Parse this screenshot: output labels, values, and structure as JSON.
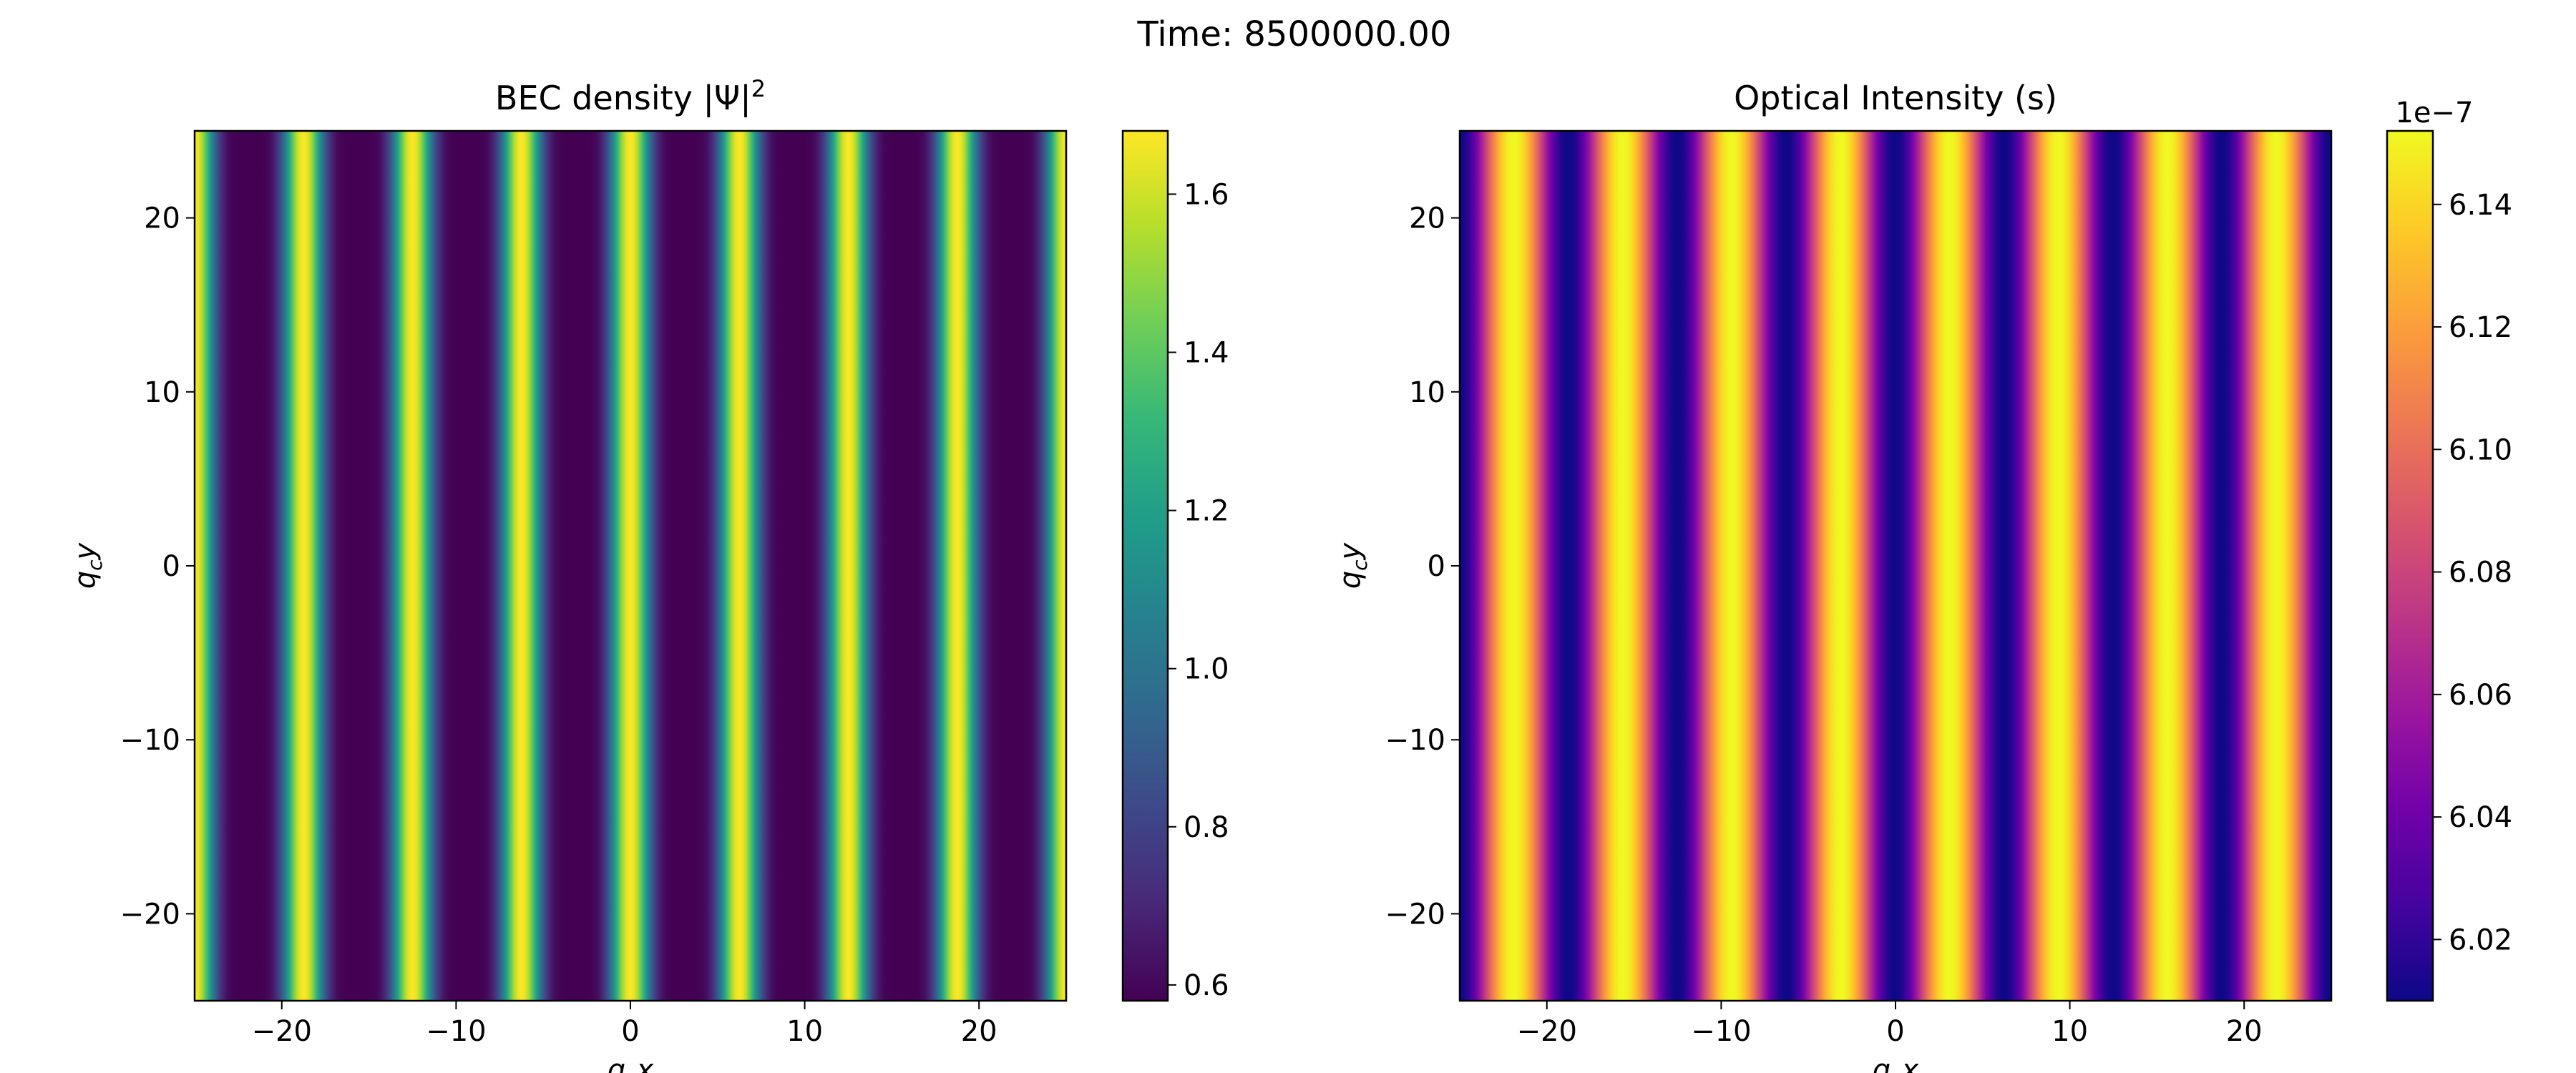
{
  "figure": {
    "suptitle": "Time: 8500000.00"
  },
  "chart_data": [
    {
      "type": "heatmap",
      "title": "BEC density |Ψ|",
      "title_superscript": "2",
      "xlabel": "q",
      "xlabel_sub": "c",
      "xlabel_var": "x",
      "ylabel": "q",
      "ylabel_sub": "c",
      "ylabel_var": "y",
      "xlim": [
        -25,
        25
      ],
      "ylim": [
        -25,
        25
      ],
      "xticks": [
        -20,
        -10,
        0,
        10,
        20
      ],
      "yticks": [
        -20,
        -10,
        0,
        10,
        20
      ],
      "colormap": "viridis",
      "stripe_count": 8,
      "stripe_centers_x": [
        -25,
        -18.8,
        -12.5,
        -6.2,
        0,
        6.2,
        12.5,
        18.8,
        25
      ],
      "field": "density varies only along x; |Ψ|^2 ≈ 0.58 between stripes, peaks ≈ 1.68 at stripe centers",
      "value_range": [
        0.58,
        1.68
      ],
      "colorbar": {
        "ticks": [
          "0.6",
          "0.8",
          "1.0",
          "1.2",
          "1.4",
          "1.6"
        ],
        "tick_values": [
          0.6,
          0.8,
          1.0,
          1.2,
          1.4,
          1.6
        ],
        "offset_text": ""
      },
      "grid": false
    },
    {
      "type": "heatmap",
      "title": "Optical Intensity (s)",
      "xlabel": "q",
      "xlabel_sub": "c",
      "xlabel_var": "x",
      "ylabel": "q",
      "ylabel_sub": "c",
      "ylabel_var": "y",
      "xlim": [
        -25,
        25
      ],
      "ylim": [
        -25,
        25
      ],
      "xticks": [
        -20,
        -10,
        0,
        10,
        20
      ],
      "yticks": [
        -20,
        -10,
        0,
        10,
        20
      ],
      "colormap": "plasma",
      "field": "intensity varies only along x as a smooth cosine, same period as the density stripes",
      "value_range_scaled": [
        6.01,
        6.152
      ],
      "scale": 1e-07,
      "colorbar": {
        "ticks": [
          "6.02",
          "6.04",
          "6.06",
          "6.08",
          "6.10",
          "6.12",
          "6.14"
        ],
        "tick_values": [
          6.02,
          6.04,
          6.06,
          6.08,
          6.1,
          6.12,
          6.14
        ],
        "offset_text": "1e−7"
      },
      "grid": false
    }
  ]
}
